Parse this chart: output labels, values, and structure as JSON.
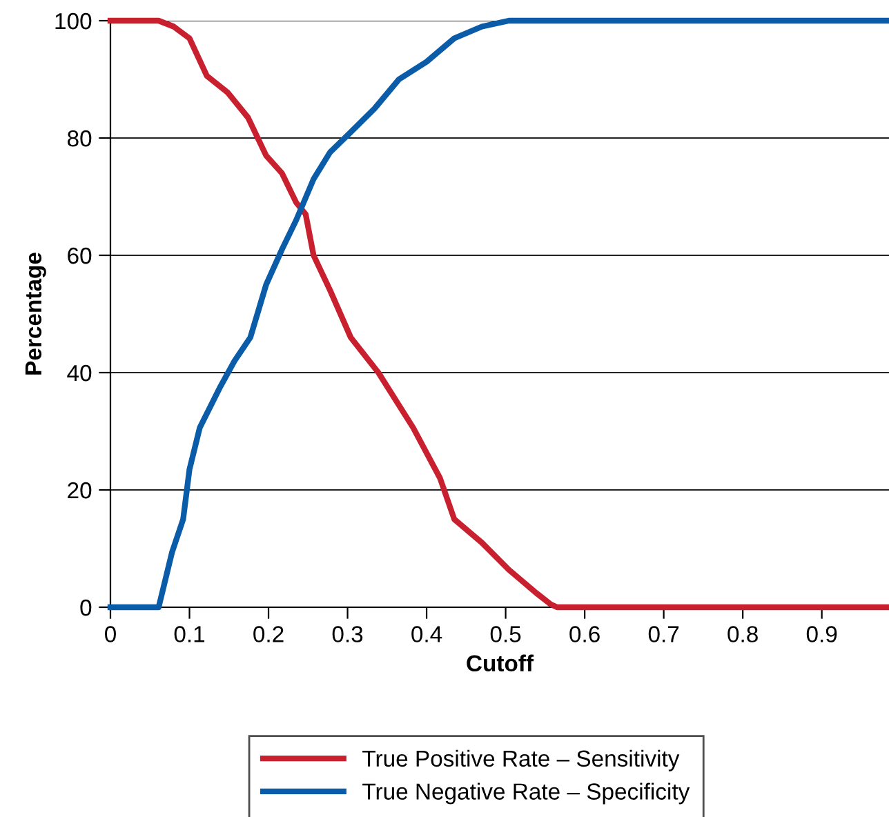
{
  "chart_data": {
    "type": "line",
    "xlabel": "Cutoff",
    "ylabel": "Percentage",
    "xlim": [
      0,
      0.985
    ],
    "ylim": [
      0,
      100
    ],
    "xticks": [
      0,
      0.1,
      0.2,
      0.3,
      0.4,
      0.5,
      0.6,
      0.7,
      0.8,
      0.9
    ],
    "yticks": [
      0,
      20,
      40,
      60,
      80,
      100
    ],
    "grid": "y",
    "legend": "bottom",
    "marker": "none",
    "line_style": "solid",
    "series": [
      {
        "name": "True Positive Rate – Sensitivity",
        "color": "#c8202f",
        "x": [
          0,
          0.061,
          0.08,
          0.1,
          0.122,
          0.148,
          0.174,
          0.197,
          0.217,
          0.235,
          0.247,
          0.257,
          0.278,
          0.304,
          0.339,
          0.383,
          0.417,
          0.435,
          0.47,
          0.504,
          0.539,
          0.557,
          0.565,
          0.985
        ],
        "values": [
          100,
          100,
          99,
          97,
          90.6,
          87.8,
          83.5,
          77,
          74,
          69,
          67,
          60,
          54,
          46,
          40,
          30.6,
          22,
          15,
          11,
          6.4,
          2.4,
          0.5,
          0,
          0
        ]
      },
      {
        "name": "True Negative Rate – Specificity",
        "color": "#0a5ca8",
        "x": [
          0,
          0.061,
          0.078,
          0.092,
          0.1,
          0.113,
          0.139,
          0.157,
          0.177,
          0.197,
          0.217,
          0.235,
          0.257,
          0.278,
          0.304,
          0.334,
          0.365,
          0.4,
          0.435,
          0.47,
          0.504,
          0.985
        ],
        "values": [
          0,
          0,
          9.4,
          15,
          23.5,
          30.6,
          37.6,
          42,
          46,
          55,
          61,
          66,
          73,
          77.6,
          81,
          85,
          90,
          93,
          97,
          99,
          100,
          100
        ]
      }
    ]
  }
}
